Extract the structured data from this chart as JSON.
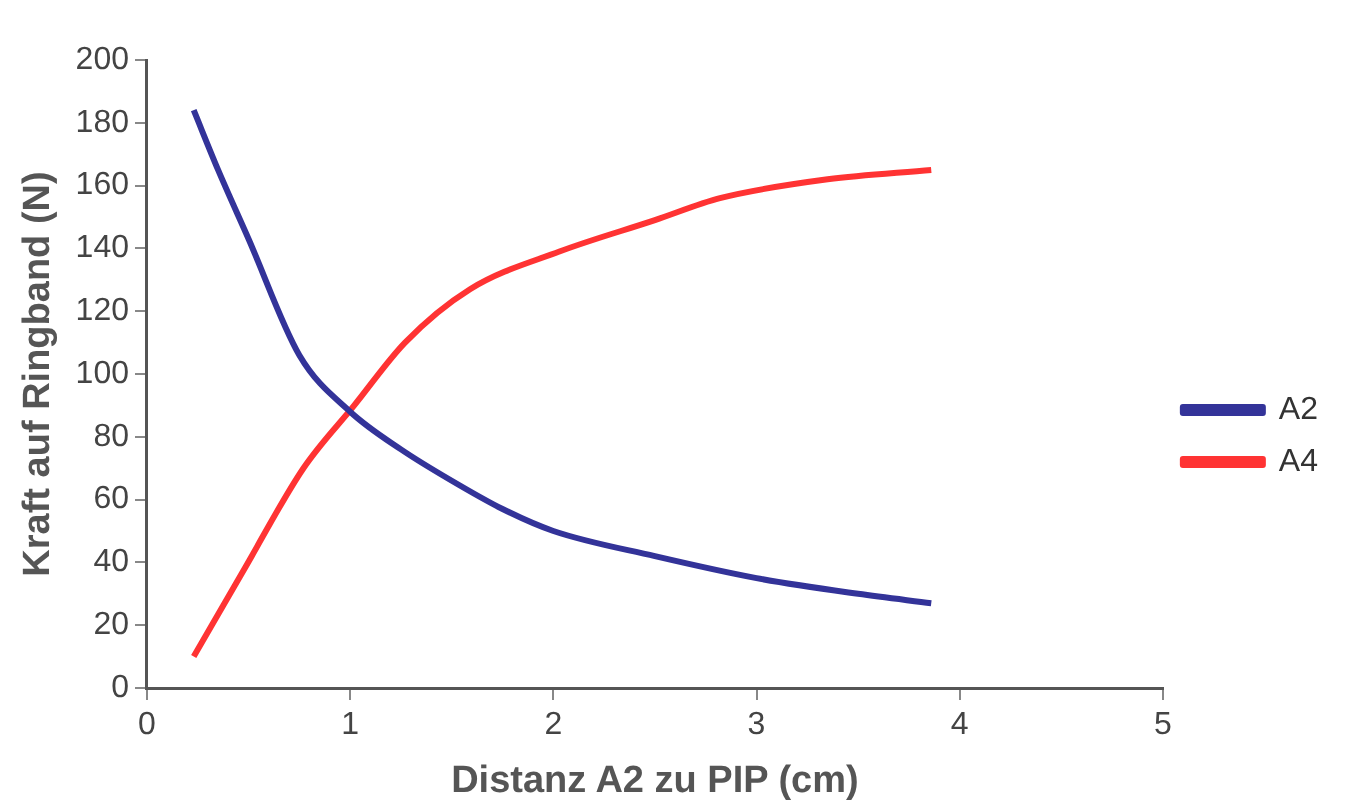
{
  "chart_data": {
    "type": "line",
    "xlabel": "Distanz A2 zu PIP (cm)",
    "ylabel": "Kraft auf Ringband (N)",
    "xlim": [
      0,
      5
    ],
    "xticks": [
      0,
      1,
      2,
      3,
      4,
      5
    ],
    "ylim": [
      0,
      200
    ],
    "yticks": [
      0,
      20,
      40,
      60,
      80,
      100,
      120,
      140,
      160,
      180,
      200
    ],
    "grid": false,
    "legend": "right",
    "marker": "none",
    "series": [
      {
        "name": "A2",
        "color": "#333399",
        "x": [
          0.23,
          0.35,
          0.5,
          0.75,
          1.0,
          1.25,
          1.5,
          1.75,
          2.0,
          2.5,
          3.0,
          3.5,
          3.86
        ],
        "values": [
          184,
          165,
          143,
          106,
          88,
          76,
          66,
          57,
          50,
          42,
          35,
          30,
          27
        ]
      },
      {
        "name": "A4",
        "color": "#ff3333",
        "x": [
          0.23,
          0.48,
          0.77,
          1.02,
          1.27,
          1.59,
          2.03,
          2.5,
          2.82,
          3.35,
          3.86
        ],
        "values": [
          10,
          38,
          70,
          90,
          110,
          127,
          139,
          149,
          156,
          162,
          165
        ]
      }
    ]
  }
}
